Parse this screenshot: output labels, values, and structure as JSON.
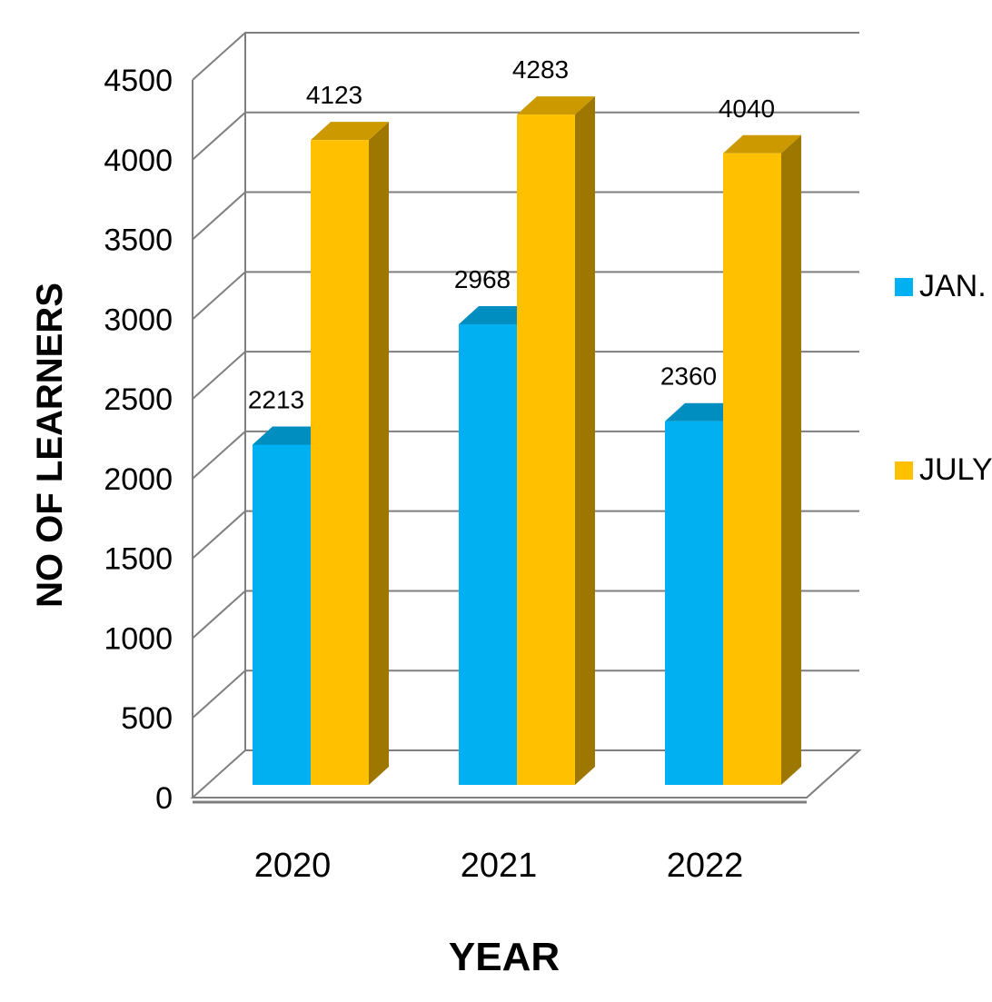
{
  "chart_data": {
    "type": "bar",
    "style": "3d-clustered-column",
    "categories": [
      "2020",
      "2021",
      "2022"
    ],
    "series": [
      {
        "name": "JAN.",
        "color": "#00B0F0",
        "values": [
          2213,
          2968,
          2360
        ]
      },
      {
        "name": "JULY",
        "color": "#FFC000",
        "values": [
          4123,
          4283,
          4040
        ]
      }
    ],
    "xlabel": "YEAR",
    "ylabel": "NO OF LEARNERS",
    "ylim": [
      0,
      4500
    ],
    "yticks": [
      "0",
      "500",
      "1000",
      "1500",
      "2000",
      "2500",
      "3000",
      "3500",
      "4000",
      "4500"
    ],
    "grid": true,
    "legend_position": "right",
    "data_labels": true
  }
}
